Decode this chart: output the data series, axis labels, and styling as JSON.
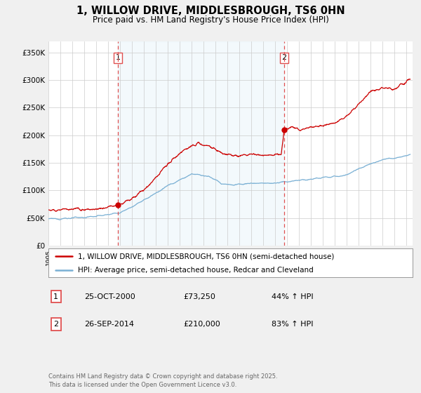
{
  "title": "1, WILLOW DRIVE, MIDDLESBROUGH, TS6 0HN",
  "subtitle": "Price paid vs. HM Land Registry's House Price Index (HPI)",
  "legend_line1": "1, WILLOW DRIVE, MIDDLESBROUGH, TS6 0HN (semi-detached house)",
  "legend_line2": "HPI: Average price, semi-detached house, Redcar and Cleveland",
  "footnote": "Contains HM Land Registry data © Crown copyright and database right 2025.\nThis data is licensed under the Open Government Licence v3.0.",
  "sale1_label": "1",
  "sale1_date": "25-OCT-2000",
  "sale1_price": "£73,250",
  "sale1_hpi": "44% ↑ HPI",
  "sale1_x": 2000.82,
  "sale1_y": 73250,
  "sale2_label": "2",
  "sale2_date": "26-SEP-2014",
  "sale2_price": "£210,000",
  "sale2_hpi": "83% ↑ HPI",
  "sale2_x": 2014.74,
  "sale2_y": 210000,
  "vline1_x": 2000.82,
  "vline2_x": 2014.74,
  "property_color": "#cc0000",
  "hpi_color": "#7ab0d4",
  "hpi_fill_color": "#d0e8f5",
  "vline_color": "#e05050",
  "background_color": "#f0f0f0",
  "plot_bg_color": "#ffffff",
  "ylim": [
    0,
    370000
  ],
  "xlim_start": 1995.0,
  "xlim_end": 2025.5,
  "yticks": [
    0,
    50000,
    100000,
    150000,
    200000,
    250000,
    300000,
    350000
  ],
  "ylabels": [
    "£0",
    "£50K",
    "£100K",
    "£150K",
    "£200K",
    "£250K",
    "£300K",
    "£350K"
  ]
}
